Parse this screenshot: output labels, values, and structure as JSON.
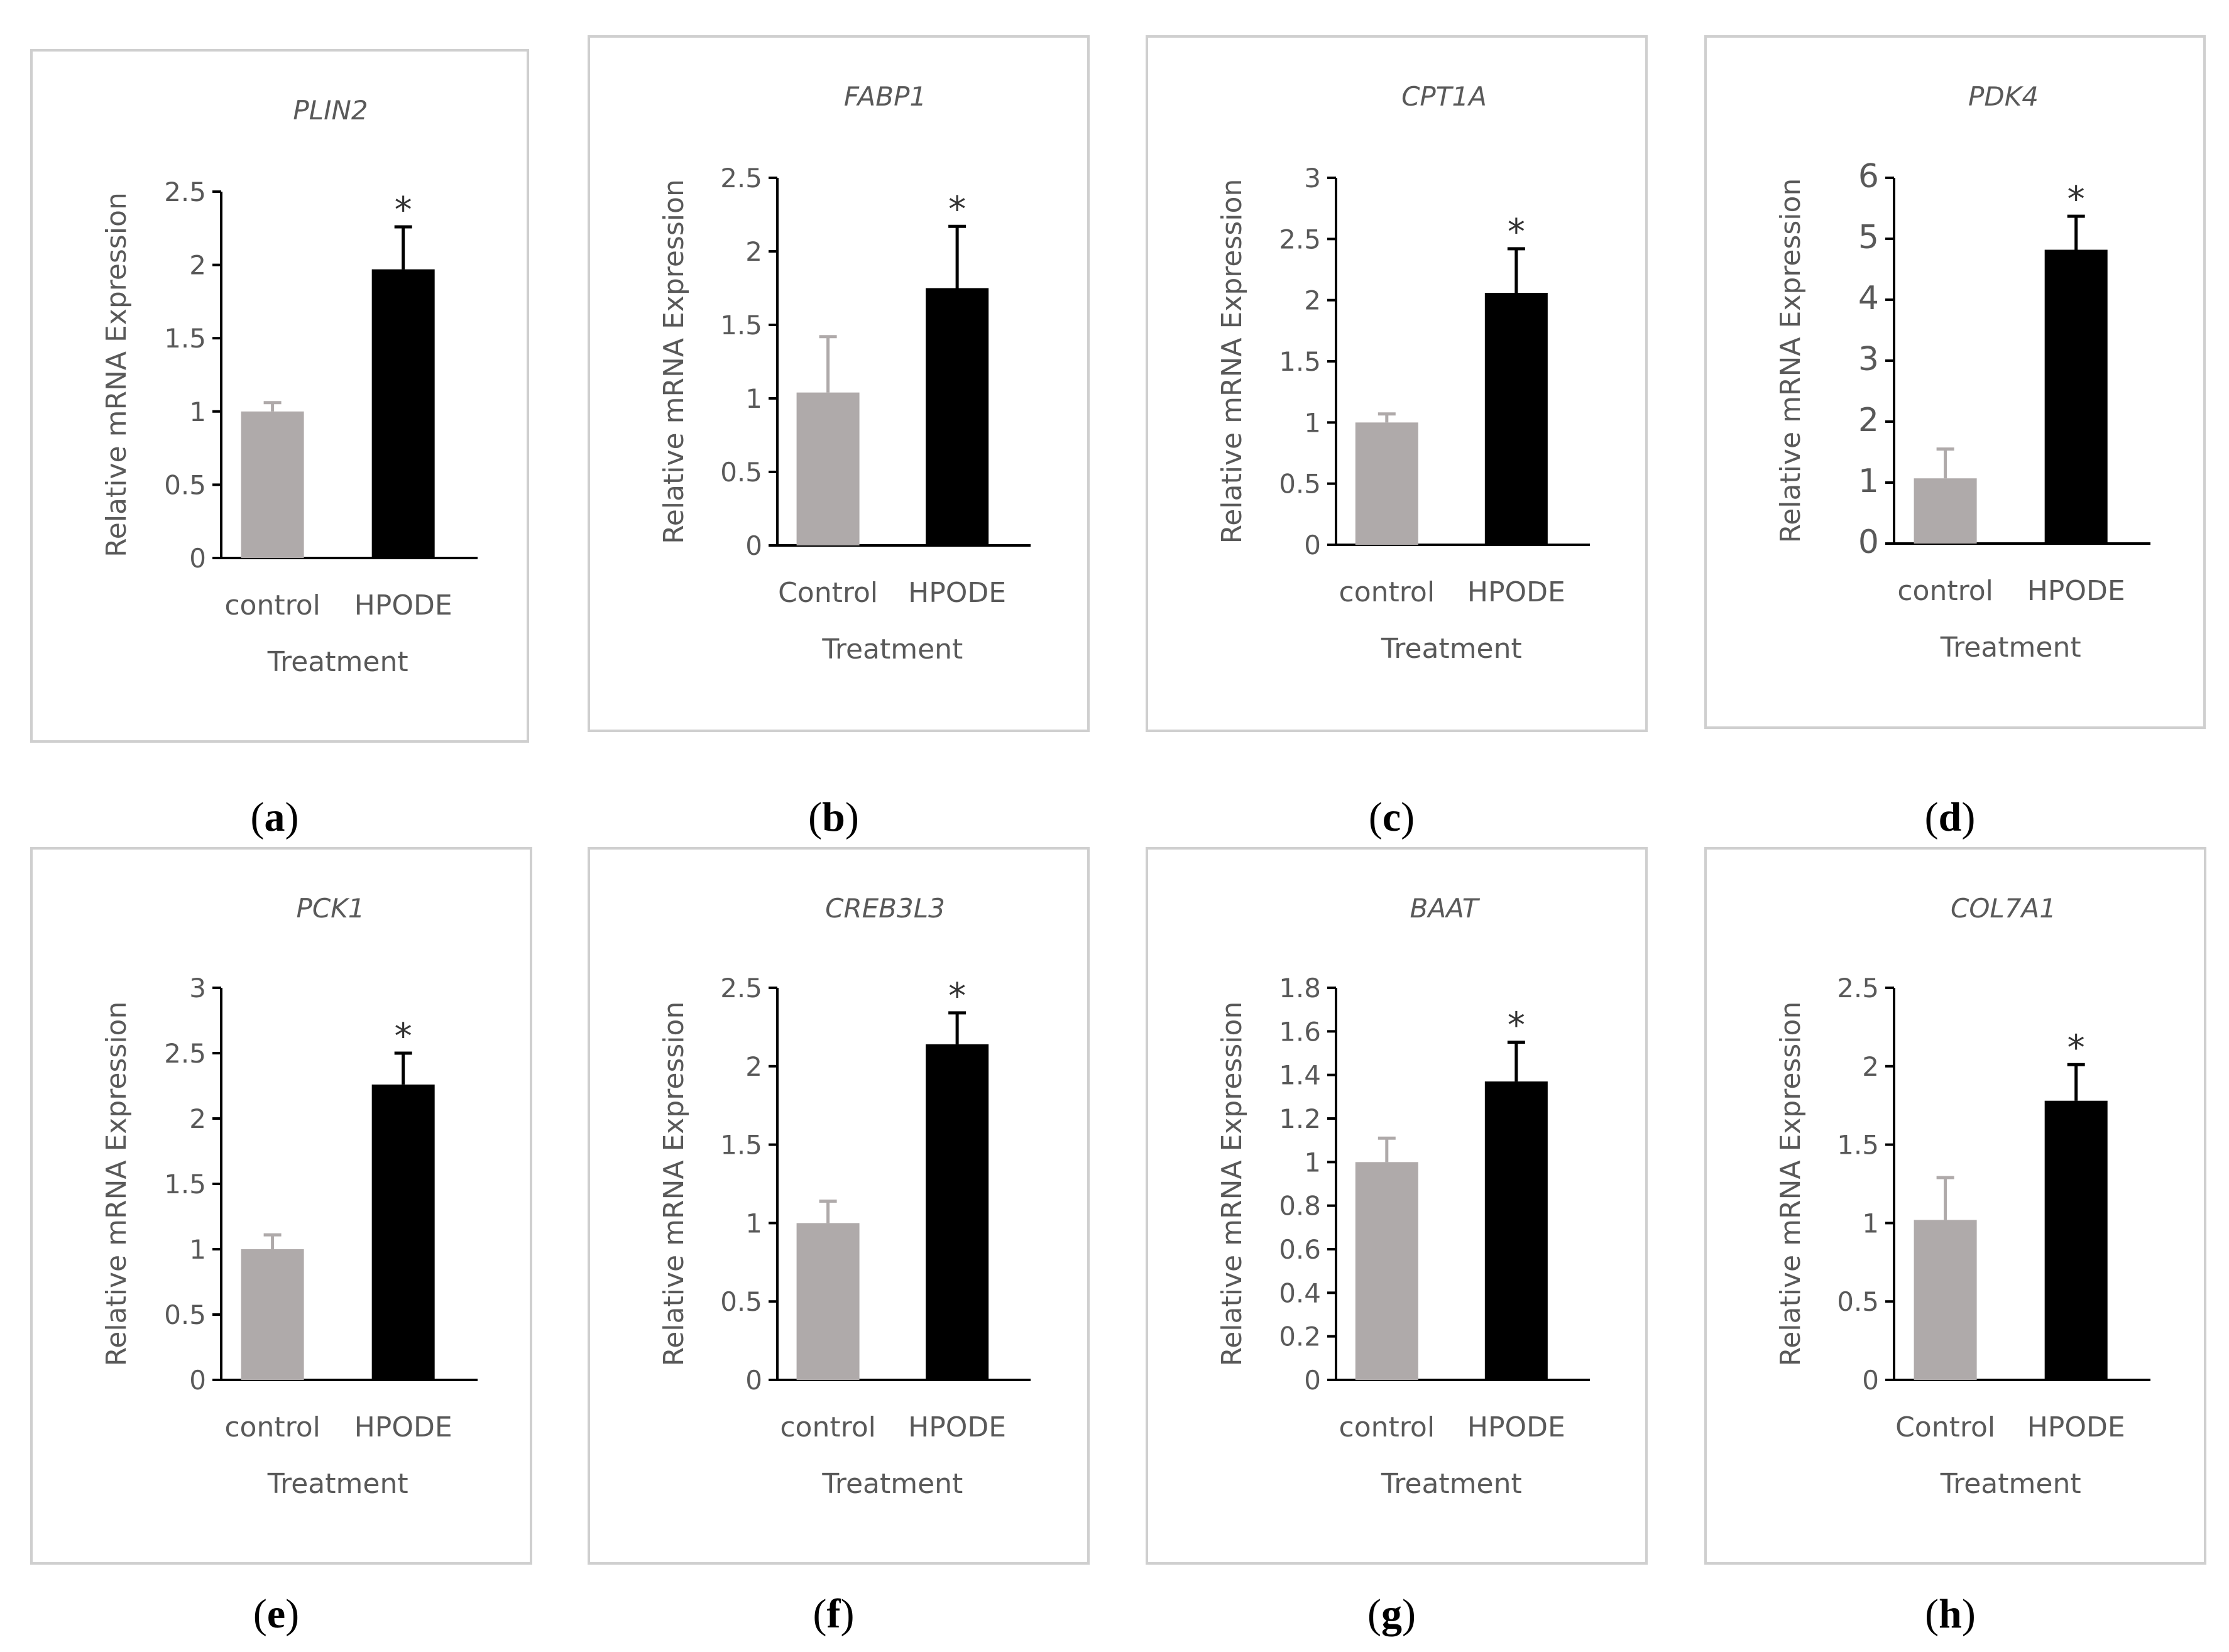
{
  "figure": {
    "background": "#ffffff",
    "control_color": "#afaaaa",
    "treated_color": "#000000",
    "frame_color": "#cfcfcf"
  },
  "chart_data": [
    {
      "panel_label": "a",
      "type": "bar",
      "title": "PLIN2",
      "ylabel": "Relative mRNA Expression",
      "xlabel": "Treatment",
      "categories": [
        "control",
        "HPODE"
      ],
      "values": [
        1.0,
        1.97
      ],
      "errors": [
        0.06,
        0.29
      ],
      "significance": [
        "",
        "*"
      ],
      "ylim": [
        0,
        2.5
      ],
      "yticks": [
        "0",
        "0.5",
        "1",
        "1.5",
        "2",
        "2.5"
      ],
      "grid": false
    },
    {
      "panel_label": "b",
      "type": "bar",
      "title": "FABP1",
      "ylabel": "Relative mRNA Expression",
      "xlabel": "Treatment",
      "categories": [
        "Control",
        "HPODE"
      ],
      "values": [
        1.04,
        1.75
      ],
      "errors": [
        0.38,
        0.42
      ],
      "significance": [
        "",
        "*"
      ],
      "ylim": [
        0,
        2.5
      ],
      "yticks": [
        "0",
        "0.5",
        "1",
        "1.5",
        "2",
        "2.5"
      ],
      "grid": false
    },
    {
      "panel_label": "c",
      "type": "bar",
      "title": "CPT1A",
      "ylabel": "Relative mRNA Expression",
      "xlabel": "Treatment",
      "categories": [
        "control",
        "HPODE"
      ],
      "values": [
        1.0,
        2.06
      ],
      "errors": [
        0.07,
        0.36
      ],
      "significance": [
        "",
        "*"
      ],
      "ylim": [
        0,
        3
      ],
      "yticks": [
        "0",
        "0.5",
        "1",
        "1.5",
        "2",
        "2.5",
        "3"
      ],
      "grid": false
    },
    {
      "panel_label": "d",
      "type": "bar",
      "title": "PDK4",
      "ylabel": "Relative mRNA Expression",
      "xlabel": "Treatment",
      "categories": [
        "control",
        "HPODE"
      ],
      "values": [
        1.07,
        4.82
      ],
      "errors": [
        0.48,
        0.55
      ],
      "significance": [
        "",
        "*"
      ],
      "ylim": [
        0,
        6
      ],
      "yticks": [
        "0",
        "1",
        "2",
        "3",
        "4",
        "5",
        "6"
      ],
      "grid": false
    },
    {
      "panel_label": "e",
      "type": "bar",
      "title": "PCK1",
      "ylabel": "Relative mRNA Expression",
      "xlabel": "Treatment",
      "categories": [
        "control",
        "HPODE"
      ],
      "values": [
        1.0,
        2.26
      ],
      "errors": [
        0.11,
        0.24
      ],
      "significance": [
        "",
        "*"
      ],
      "ylim": [
        0,
        3
      ],
      "yticks": [
        "0",
        "0.5",
        "1",
        "1.5",
        "2",
        "2.5",
        "3"
      ],
      "grid": false
    },
    {
      "panel_label": "f",
      "type": "bar",
      "title": "CREB3L3",
      "ylabel": "Relative mRNA Expression",
      "xlabel": "Treatment",
      "categories": [
        "control",
        "HPODE"
      ],
      "values": [
        1.0,
        2.14
      ],
      "errors": [
        0.14,
        0.2
      ],
      "significance": [
        "",
        "*"
      ],
      "ylim": [
        0,
        2.5
      ],
      "yticks": [
        "0",
        "0.5",
        "1",
        "1.5",
        "2",
        "2.5"
      ],
      "grid": false
    },
    {
      "panel_label": "g",
      "type": "bar",
      "title": "BAAT",
      "ylabel": "Relative mRNA Expression",
      "xlabel": "Treatment",
      "categories": [
        "control",
        "HPODE"
      ],
      "values": [
        1.0,
        1.37
      ],
      "errors": [
        0.11,
        0.18
      ],
      "significance": [
        "",
        "*"
      ],
      "ylim": [
        0,
        1.8
      ],
      "yticks": [
        "0",
        "0.2",
        "0.4",
        "0.6",
        "0.8",
        "1",
        "1.2",
        "1.4",
        "1.6",
        "1.8"
      ],
      "grid": false
    },
    {
      "panel_label": "h",
      "type": "bar",
      "title": "COL7A1",
      "ylabel": "Relative mRNA Expression",
      "xlabel": "Treatment",
      "categories": [
        "Control",
        "HPODE"
      ],
      "values": [
        1.02,
        1.78
      ],
      "errors": [
        0.27,
        0.23
      ],
      "significance": [
        "",
        "*"
      ],
      "ylim": [
        0,
        2.5
      ],
      "yticks": [
        "0",
        "0.5",
        "1",
        "1.5",
        "2",
        "2.5"
      ],
      "grid": false
    }
  ]
}
